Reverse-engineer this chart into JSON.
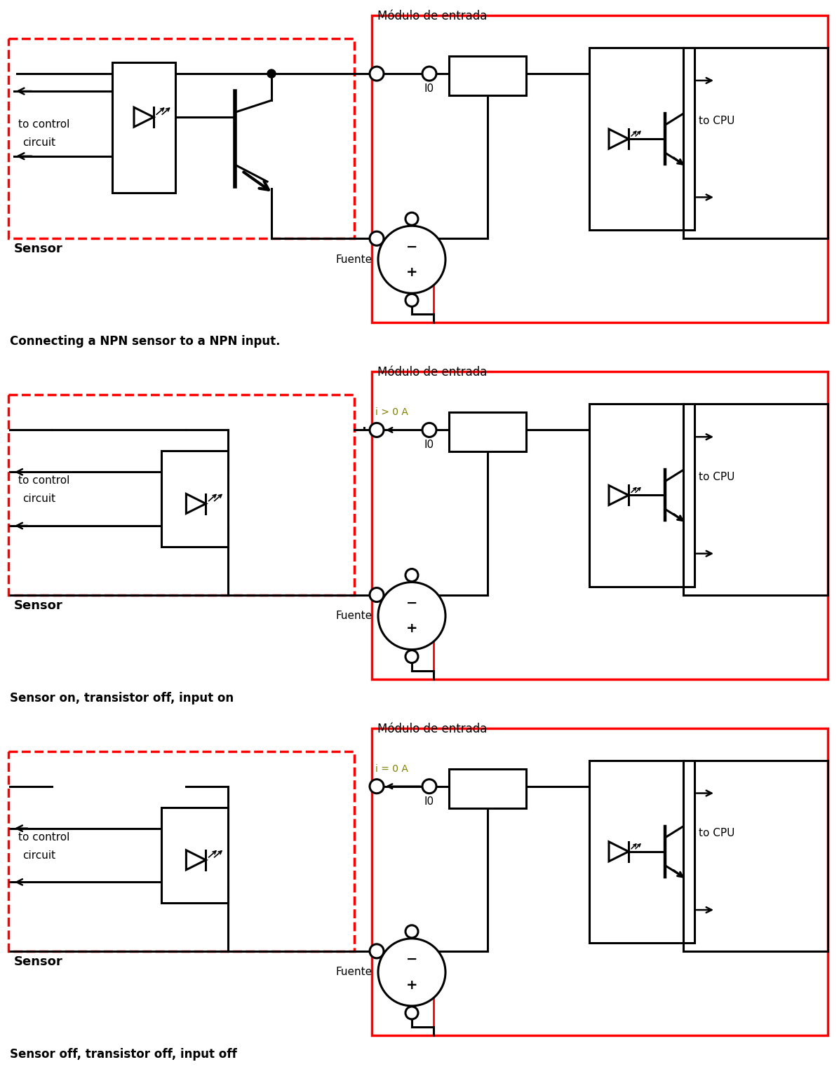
{
  "diagrams": [
    {
      "caption": "Connecting a NPN sensor to a NPN input.",
      "modulo_label": "Módulo de entrada",
      "sensor_label": "Sensor",
      "fuente_label": "Fuente",
      "io_label": "I0",
      "cpu_label": "to CPU",
      "current_label": "",
      "current_color": "#808000",
      "has_full_npn": true,
      "switch_open": false
    },
    {
      "caption": "Sensor on, transistor off, input on",
      "modulo_label": "Módulo de entrada",
      "sensor_label": "Sensor",
      "fuente_label": "Fuente",
      "io_label": "I0",
      "cpu_label": "to CPU",
      "current_label": "i > 0 A",
      "current_color": "#808000",
      "has_full_npn": false,
      "switch_open": false
    },
    {
      "caption": "Sensor off, transistor off, input off",
      "modulo_label": "Módulo de entrada",
      "sensor_label": "Sensor",
      "fuente_label": "Fuente",
      "io_label": "I0",
      "cpu_label": "to CPU",
      "current_label": "i = 0 A",
      "current_color": "#808000",
      "has_full_npn": false,
      "switch_open": true
    }
  ],
  "fig_w": 11.96,
  "fig_h": 15.25,
  "dpi": 100
}
